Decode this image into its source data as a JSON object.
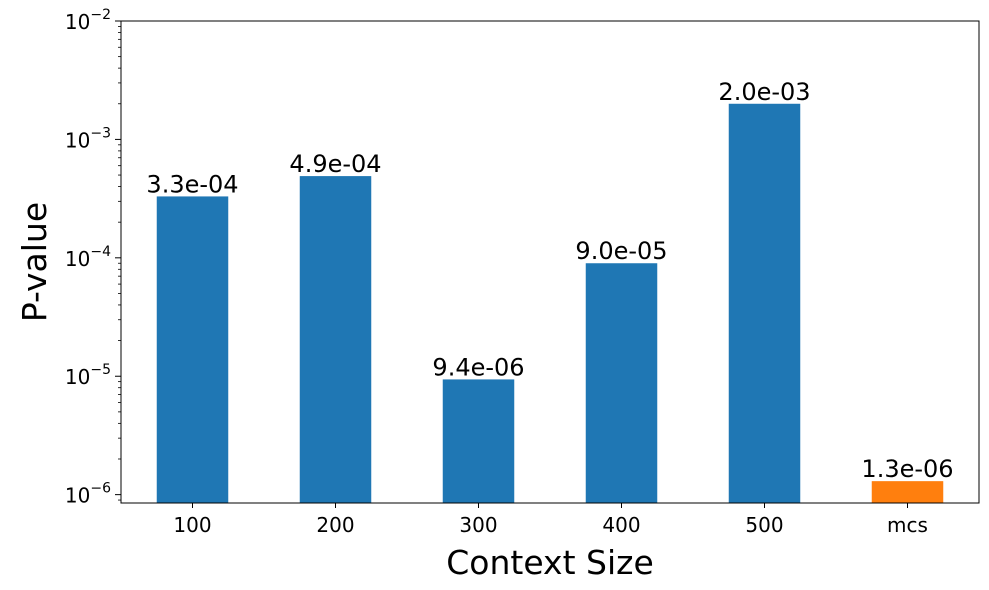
{
  "chart_data": {
    "type": "bar",
    "title": "",
    "xlabel": "Context Size",
    "ylabel": "P-value",
    "yscale": "log",
    "ylim": [
      8.5e-07,
      0.01
    ],
    "categories": [
      "100",
      "200",
      "300",
      "400",
      "500",
      "mcs"
    ],
    "values": [
      0.00033,
      0.00049,
      9.4e-06,
      9e-05,
      0.002,
      1.3e-06
    ],
    "data_labels": [
      "3.3e-04",
      "4.9e-04",
      "9.4e-06",
      "9.0e-05",
      "2.0e-03",
      "1.3e-06"
    ],
    "bar_colors": [
      "#1f77b4",
      "#1f77b4",
      "#1f77b4",
      "#1f77b4",
      "#1f77b4",
      "#ff7f0e"
    ],
    "y_ticks": [
      {
        "base": "10",
        "exp": "−6",
        "value": 1e-06
      },
      {
        "base": "10",
        "exp": "−5",
        "value": 1e-05
      },
      {
        "base": "10",
        "exp": "−4",
        "value": 0.0001
      },
      {
        "base": "10",
        "exp": "−3",
        "value": 0.001
      },
      {
        "base": "10",
        "exp": "−2",
        "value": 0.01
      }
    ],
    "grid": false,
    "legend": "none"
  }
}
